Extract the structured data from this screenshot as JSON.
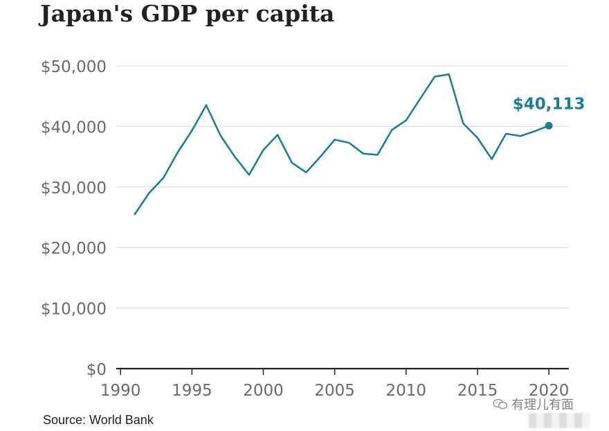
{
  "chart_data": {
    "type": "line",
    "title": "Japan's GDP per capita",
    "source": "Source: World Bank",
    "xlabel": "",
    "ylabel": "",
    "xlim": [
      1989.7,
      2021.4
    ],
    "ylim": [
      0,
      50000
    ],
    "y_ticks": [
      0,
      10000,
      20000,
      30000,
      40000,
      50000
    ],
    "y_tick_labels": [
      "$0",
      "$10,000",
      "$20,000",
      "$30,000",
      "$40,000",
      "$50,000"
    ],
    "x_ticks": [
      1990,
      1995,
      2000,
      2005,
      2010,
      2015,
      2020
    ],
    "x_tick_labels": [
      "1990",
      "1995",
      "2000",
      "2005",
      "2010",
      "2015",
      "2020"
    ],
    "grid": "horizontal",
    "line_color": "#1a7e9c",
    "series": [
      {
        "name": "Japan GDP per capita",
        "x": [
          1991,
          1992,
          1993,
          1994,
          1995,
          1996,
          1997,
          1998,
          1999,
          2000,
          2001,
          2002,
          2003,
          2004,
          2005,
          2006,
          2007,
          2008,
          2009,
          2010,
          2011,
          2012,
          2013,
          2014,
          2015,
          2016,
          2017,
          2018,
          2019,
          2020
        ],
        "values": [
          25500,
          29000,
          31500,
          35700,
          39300,
          43500,
          38500,
          35000,
          32000,
          36100,
          38600,
          34000,
          32400,
          35000,
          37800,
          37300,
          35500,
          35300,
          39400,
          41000,
          44600,
          48200,
          48600,
          40500,
          38100,
          34600,
          38800,
          38400,
          39200,
          40113
        ]
      }
    ],
    "annotations": [
      {
        "x": 2020,
        "y": 40113,
        "text": "$40,113"
      }
    ]
  },
  "watermark": {
    "text": "有理儿有面"
  }
}
